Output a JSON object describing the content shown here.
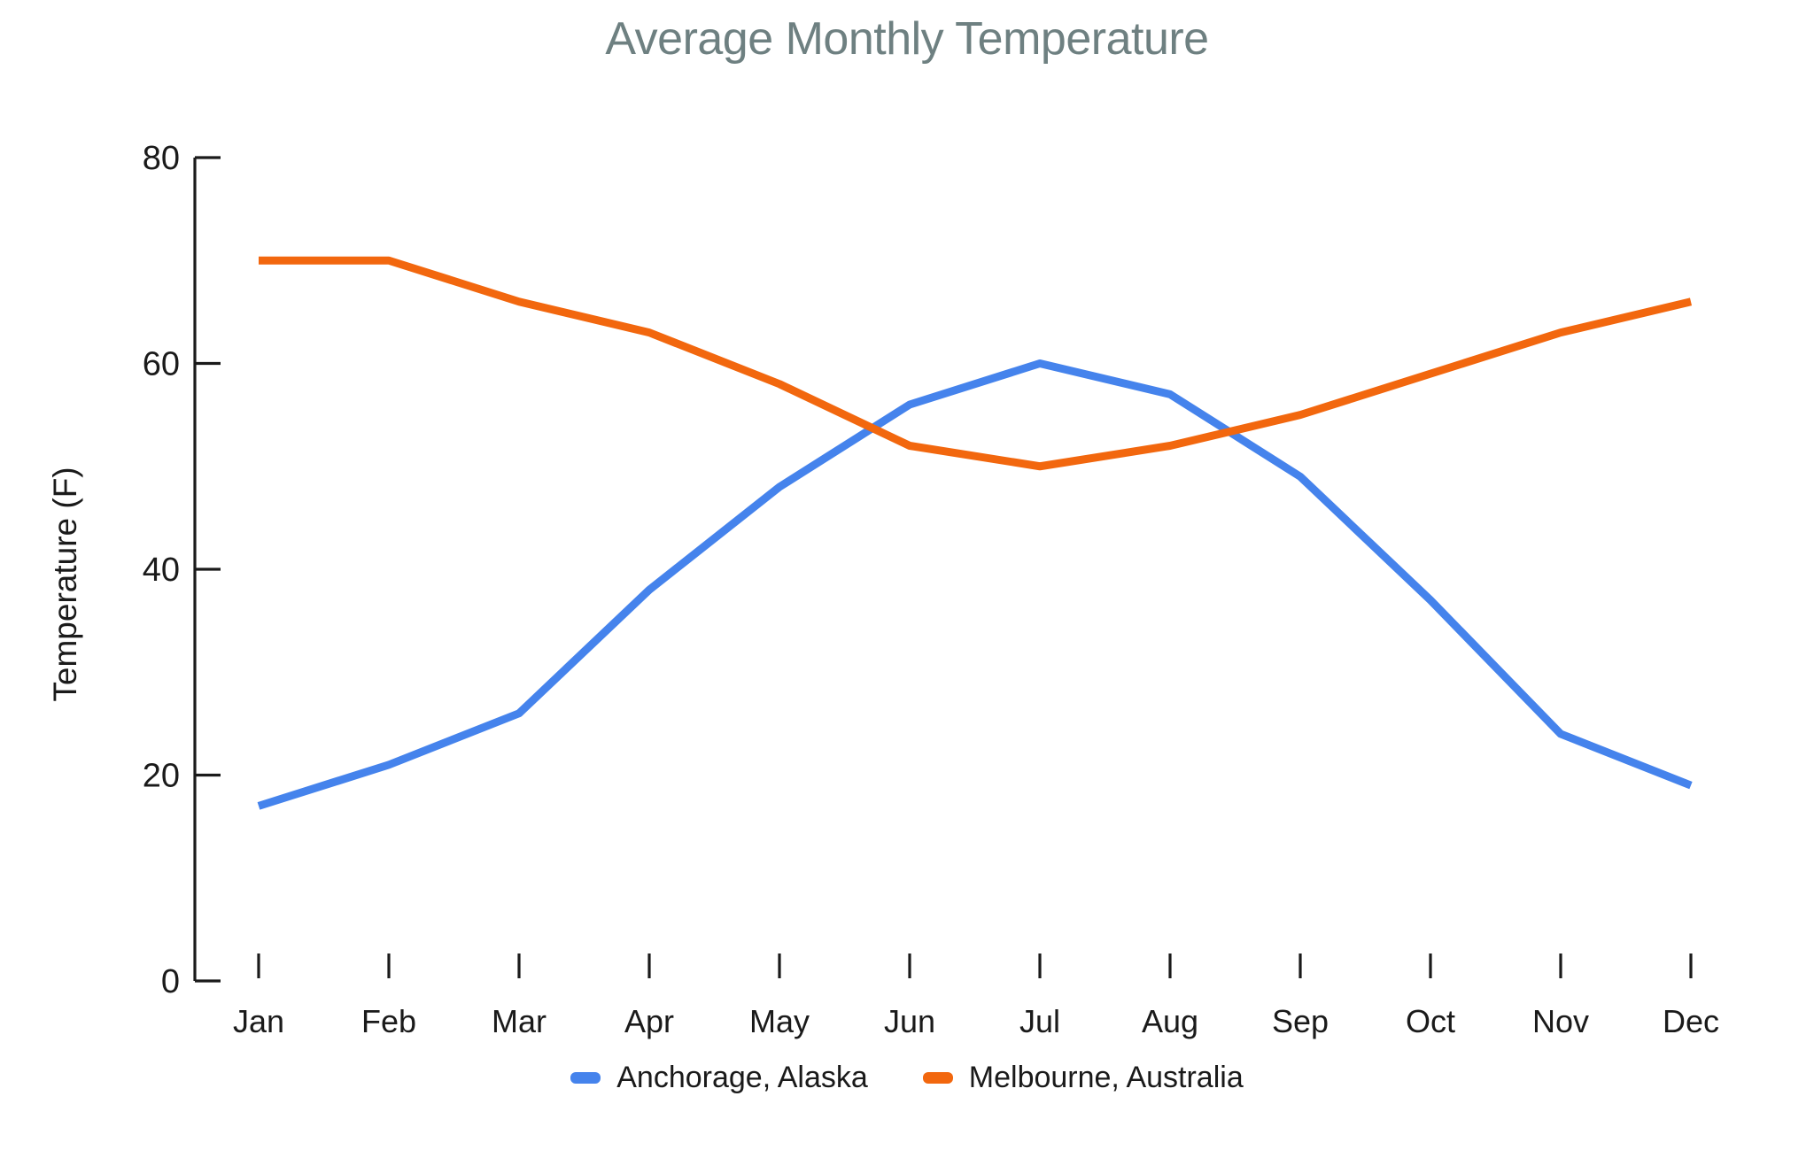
{
  "title": {
    "text": "Average Monthly Temperature",
    "color": "#6E8081"
  },
  "y_axis": {
    "label": "Temperature (F)",
    "tick_labels": [
      "0",
      "20",
      "40",
      "60",
      "80"
    ]
  },
  "x_axis": {
    "tick_labels": [
      "Jan",
      "Feb",
      "Mar",
      "Apr",
      "May",
      "Jun",
      "Jul",
      "Aug",
      "Sep",
      "Oct",
      "Nov",
      "Dec"
    ]
  },
  "legend": {
    "position": "bottom",
    "items": [
      {
        "label": "Anchorage, Alaska",
        "color": "#4583EC"
      },
      {
        "label": "Melbourne, Australia",
        "color": "#F2670E"
      }
    ]
  },
  "chart_data": {
    "type": "line",
    "title": "Average Monthly Temperature",
    "xlabel": "",
    "ylabel": "Temperature (F)",
    "categories": [
      "Jan",
      "Feb",
      "Mar",
      "Apr",
      "May",
      "Jun",
      "Jul",
      "Aug",
      "Sep",
      "Oct",
      "Nov",
      "Dec"
    ],
    "series": [
      {
        "name": "Anchorage, Alaska",
        "color": "#4583EC",
        "values": [
          17,
          21,
          26,
          38,
          48,
          56,
          60,
          57,
          49,
          37,
          24,
          19
        ]
      },
      {
        "name": "Melbourne, Australia",
        "color": "#F2670E",
        "values": [
          70,
          70,
          66,
          63,
          58,
          52,
          50,
          52,
          55,
          59,
          63,
          66
        ]
      }
    ],
    "ylim": [
      0,
      80
    ],
    "y_ticks": [
      0,
      20,
      40,
      60,
      80
    ],
    "grid": false,
    "axis_color": "#1a1a1a",
    "legend_position": "bottom"
  }
}
